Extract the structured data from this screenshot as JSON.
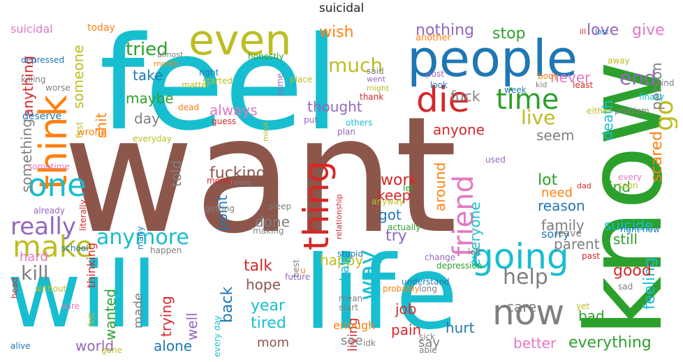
{
  "title": "suicidal",
  "palette": {
    "brown": "#8c564b",
    "cyan": "#17becf",
    "olive": "#bcbd22",
    "blue": "#1f77b4",
    "red": "#d62728",
    "green": "#2ca02c",
    "pink": "#e377c2",
    "orange": "#ff7f0e",
    "purple": "#9467bd",
    "gray": "#7f7f7f"
  },
  "words": [
    {
      "text": "want",
      "color": "brown"
    },
    {
      "text": "feel",
      "color": "cyan"
    },
    {
      "text": "know",
      "color": "green"
    },
    {
      "text": "life",
      "color": "cyan"
    },
    {
      "text": "will",
      "color": "cyan"
    },
    {
      "text": "people",
      "color": "blue"
    },
    {
      "text": "even",
      "color": "olive"
    },
    {
      "text": "think",
      "color": "orange"
    },
    {
      "text": "thing",
      "color": "red"
    },
    {
      "text": "going",
      "color": "cyan"
    },
    {
      "text": "die",
      "color": "red"
    },
    {
      "text": "friend",
      "color": "pink"
    },
    {
      "text": "now",
      "color": "gray"
    },
    {
      "text": "make",
      "color": "olive"
    },
    {
      "text": "one",
      "color": "cyan"
    },
    {
      "text": "really",
      "color": "purple"
    },
    {
      "text": "time",
      "color": "green"
    },
    {
      "text": "anymore",
      "color": "cyan"
    },
    {
      "text": "much",
      "color": "olive"
    },
    {
      "text": "way",
      "color": "cyan"
    },
    {
      "text": "go",
      "color": "olive"
    },
    {
      "text": "kill",
      "color": "gray"
    },
    {
      "text": "live",
      "color": "olive"
    },
    {
      "text": "help",
      "color": "gray"
    },
    {
      "text": "end",
      "color": "purple"
    },
    {
      "text": "tried",
      "color": "green"
    },
    {
      "text": "love",
      "color": "purple"
    },
    {
      "text": "nothing",
      "color": "purple"
    },
    {
      "text": "stop",
      "color": "green"
    },
    {
      "text": "wish",
      "color": "orange"
    },
    {
      "text": "give",
      "color": "pink"
    },
    {
      "text": "anything",
      "color": "red"
    },
    {
      "text": "something",
      "color": "gray"
    },
    {
      "text": "someone",
      "color": "olive"
    },
    {
      "text": "take",
      "color": "blue"
    },
    {
      "text": "maybe",
      "color": "green"
    },
    {
      "text": "always",
      "color": "pink"
    },
    {
      "text": "thought",
      "color": "purple"
    },
    {
      "text": "shit",
      "color": "orange"
    },
    {
      "text": "day",
      "color": "gray"
    },
    {
      "text": "told",
      "color": "gray"
    },
    {
      "text": "fuck",
      "color": "gray"
    },
    {
      "text": "fucking",
      "color": "brown"
    },
    {
      "text": "anyone",
      "color": "red"
    },
    {
      "text": "never",
      "color": "pink"
    },
    {
      "text": "person",
      "color": "gray"
    },
    {
      "text": "seem",
      "color": "gray"
    },
    {
      "text": "scared",
      "color": "orange"
    },
    {
      "text": "death",
      "color": "cyan"
    },
    {
      "text": "lot",
      "color": "green"
    },
    {
      "text": "need",
      "color": "orange"
    },
    {
      "text": "find",
      "color": "green"
    },
    {
      "text": "reason",
      "color": "blue"
    },
    {
      "text": "family",
      "color": "gray"
    },
    {
      "text": "sorry",
      "color": "blue"
    },
    {
      "text": "suicide",
      "color": "cyan"
    },
    {
      "text": "work",
      "color": "red"
    },
    {
      "text": "keep",
      "color": "red"
    },
    {
      "text": "around",
      "color": "orange"
    },
    {
      "text": "everyone",
      "color": "cyan"
    },
    {
      "text": "got",
      "color": "blue"
    },
    {
      "text": "done",
      "color": "gray"
    },
    {
      "text": "point",
      "color": "blue"
    },
    {
      "text": "parent",
      "color": "gray"
    },
    {
      "text": "still",
      "color": "green"
    },
    {
      "text": "feeling",
      "color": "cyan"
    },
    {
      "text": "try",
      "color": "purple"
    },
    {
      "text": "hard",
      "color": "pink"
    },
    {
      "text": "happy",
      "color": "olive"
    },
    {
      "text": "hate",
      "color": "cyan"
    },
    {
      "text": "talk",
      "color": "red"
    },
    {
      "text": "hope",
      "color": "brown"
    },
    {
      "text": "good",
      "color": "red"
    },
    {
      "text": "back",
      "color": "blue"
    },
    {
      "text": "wanted",
      "color": "green"
    },
    {
      "text": "trying",
      "color": "red"
    },
    {
      "text": "well",
      "color": "purple"
    },
    {
      "text": "made",
      "color": "gray"
    },
    {
      "text": "year",
      "color": "cyan"
    },
    {
      "text": "tired",
      "color": "cyan"
    },
    {
      "text": "mom",
      "color": "brown"
    },
    {
      "text": "living",
      "color": "red"
    },
    {
      "text": "job",
      "color": "red"
    },
    {
      "text": "care",
      "color": "gray"
    },
    {
      "text": "bad",
      "color": "green"
    },
    {
      "text": "enough",
      "color": "orange"
    },
    {
      "text": "see",
      "color": "gray"
    },
    {
      "text": "hurt",
      "color": "blue"
    },
    {
      "text": "pain",
      "color": "red"
    },
    {
      "text": "say",
      "color": "gray"
    },
    {
      "text": "better",
      "color": "pink"
    },
    {
      "text": "everything",
      "color": "green"
    },
    {
      "text": "world",
      "color": "purple"
    },
    {
      "text": "alone",
      "color": "blue"
    },
    {
      "text": "suicidal",
      "color": "pink"
    },
    {
      "text": "today",
      "color": "orange"
    },
    {
      "text": "depressed",
      "color": "blue"
    },
    {
      "text": "killing",
      "color": "gray"
    },
    {
      "text": "worse",
      "color": "gray"
    },
    {
      "text": "deserve",
      "color": "blue"
    },
    {
      "text": "wrong",
      "color": "orange"
    },
    {
      "text": "sometime",
      "color": "pink"
    },
    {
      "text": "almost",
      "color": "gray"
    },
    {
      "text": "month",
      "color": "orange"
    },
    {
      "text": "right",
      "color": "blue"
    },
    {
      "text": "matter",
      "color": "olive"
    },
    {
      "text": "started",
      "color": "olive"
    },
    {
      "text": "honestly",
      "color": "green"
    },
    {
      "text": "place",
      "color": "olive"
    },
    {
      "text": "said",
      "color": "gray"
    },
    {
      "text": "went",
      "color": "purple"
    },
    {
      "text": "might",
      "color": "olive"
    },
    {
      "text": "thank",
      "color": "red"
    },
    {
      "text": "come",
      "color": "purple"
    },
    {
      "text": "another",
      "color": "orange"
    },
    {
      "text": "post",
      "color": "purple"
    },
    {
      "text": "look",
      "color": "blue"
    },
    {
      "text": "week",
      "color": "blue"
    },
    {
      "text": "body",
      "color": "orange"
    },
    {
      "text": "kid",
      "color": "gray"
    },
    {
      "text": "least",
      "color": "red"
    },
    {
      "text": "kind",
      "color": "gray"
    },
    {
      "text": "away",
      "color": "olive"
    },
    {
      "text": "lost",
      "color": "blue"
    },
    {
      "text": "ill",
      "color": "red"
    },
    {
      "text": "finally",
      "color": "cyan"
    },
    {
      "text": "either",
      "color": "olive"
    },
    {
      "text": "problem",
      "color": "gray"
    },
    {
      "text": "everyday",
      "color": "olive"
    },
    {
      "text": "dead",
      "color": "orange"
    },
    {
      "text": "guess",
      "color": "red"
    },
    {
      "text": "put",
      "color": "purple"
    },
    {
      "text": "others",
      "color": "cyan"
    },
    {
      "text": "plan",
      "color": "purple"
    },
    {
      "text": "first",
      "color": "olive"
    },
    {
      "text": "used",
      "color": "purple"
    },
    {
      "text": "every",
      "color": "pink"
    },
    {
      "text": "soon",
      "color": "olive"
    },
    {
      "text": "dad",
      "color": "red"
    },
    {
      "text": "mind",
      "color": "olive"
    },
    {
      "text": "money",
      "color": "red"
    },
    {
      "text": "getting",
      "color": "gray"
    },
    {
      "text": "already",
      "color": "purple"
    },
    {
      "text": "sleep",
      "color": "gray"
    },
    {
      "text": "making",
      "color": "gray"
    },
    {
      "text": "thinking",
      "color": "red"
    },
    {
      "text": "literally",
      "color": "red"
    },
    {
      "text": "many",
      "color": "blue"
    },
    {
      "text": "school",
      "color": "blue"
    },
    {
      "text": "happen",
      "color": "gray"
    },
    {
      "text": "stupid",
      "color": "blue"
    },
    {
      "text": "change",
      "color": "purple"
    },
    {
      "text": "left",
      "color": "gray"
    },
    {
      "text": "depression",
      "color": "green"
    },
    {
      "text": "let",
      "color": "green"
    },
    {
      "text": "anyway",
      "color": "olive"
    },
    {
      "text": "relationship",
      "color": "red"
    },
    {
      "text": "actually",
      "color": "green"
    },
    {
      "text": "mean",
      "color": "gray"
    },
    {
      "text": "start",
      "color": "gray"
    },
    {
      "text": "probably",
      "color": "orange"
    },
    {
      "text": "understand",
      "color": "blue"
    },
    {
      "text": "long",
      "color": "gray"
    },
    {
      "text": "sick",
      "color": "gray"
    },
    {
      "text": "able",
      "color": "gray"
    },
    {
      "text": "idk",
      "color": "gray"
    },
    {
      "text": "future",
      "color": "purple"
    },
    {
      "text": "best",
      "color": "gray"
    },
    {
      "text": "u",
      "color": "orange"
    },
    {
      "text": "leave",
      "color": "gray"
    },
    {
      "text": "right now",
      "color": "blue"
    },
    {
      "text": "past",
      "color": "red"
    },
    {
      "text": "sad",
      "color": "gray"
    },
    {
      "text": "yet",
      "color": "olive"
    },
    {
      "text": "head",
      "color": "red"
    },
    {
      "text": "without",
      "color": "olive"
    },
    {
      "text": "sure",
      "color": "pink"
    },
    {
      "text": "alive",
      "color": "blue"
    },
    {
      "text": "gone",
      "color": "olive"
    },
    {
      "text": "every day",
      "color": "cyan"
    },
    {
      "text": "felt",
      "color": "olive"
    },
    {
      "text": "house",
      "color": "gray"
    }
  ]
}
